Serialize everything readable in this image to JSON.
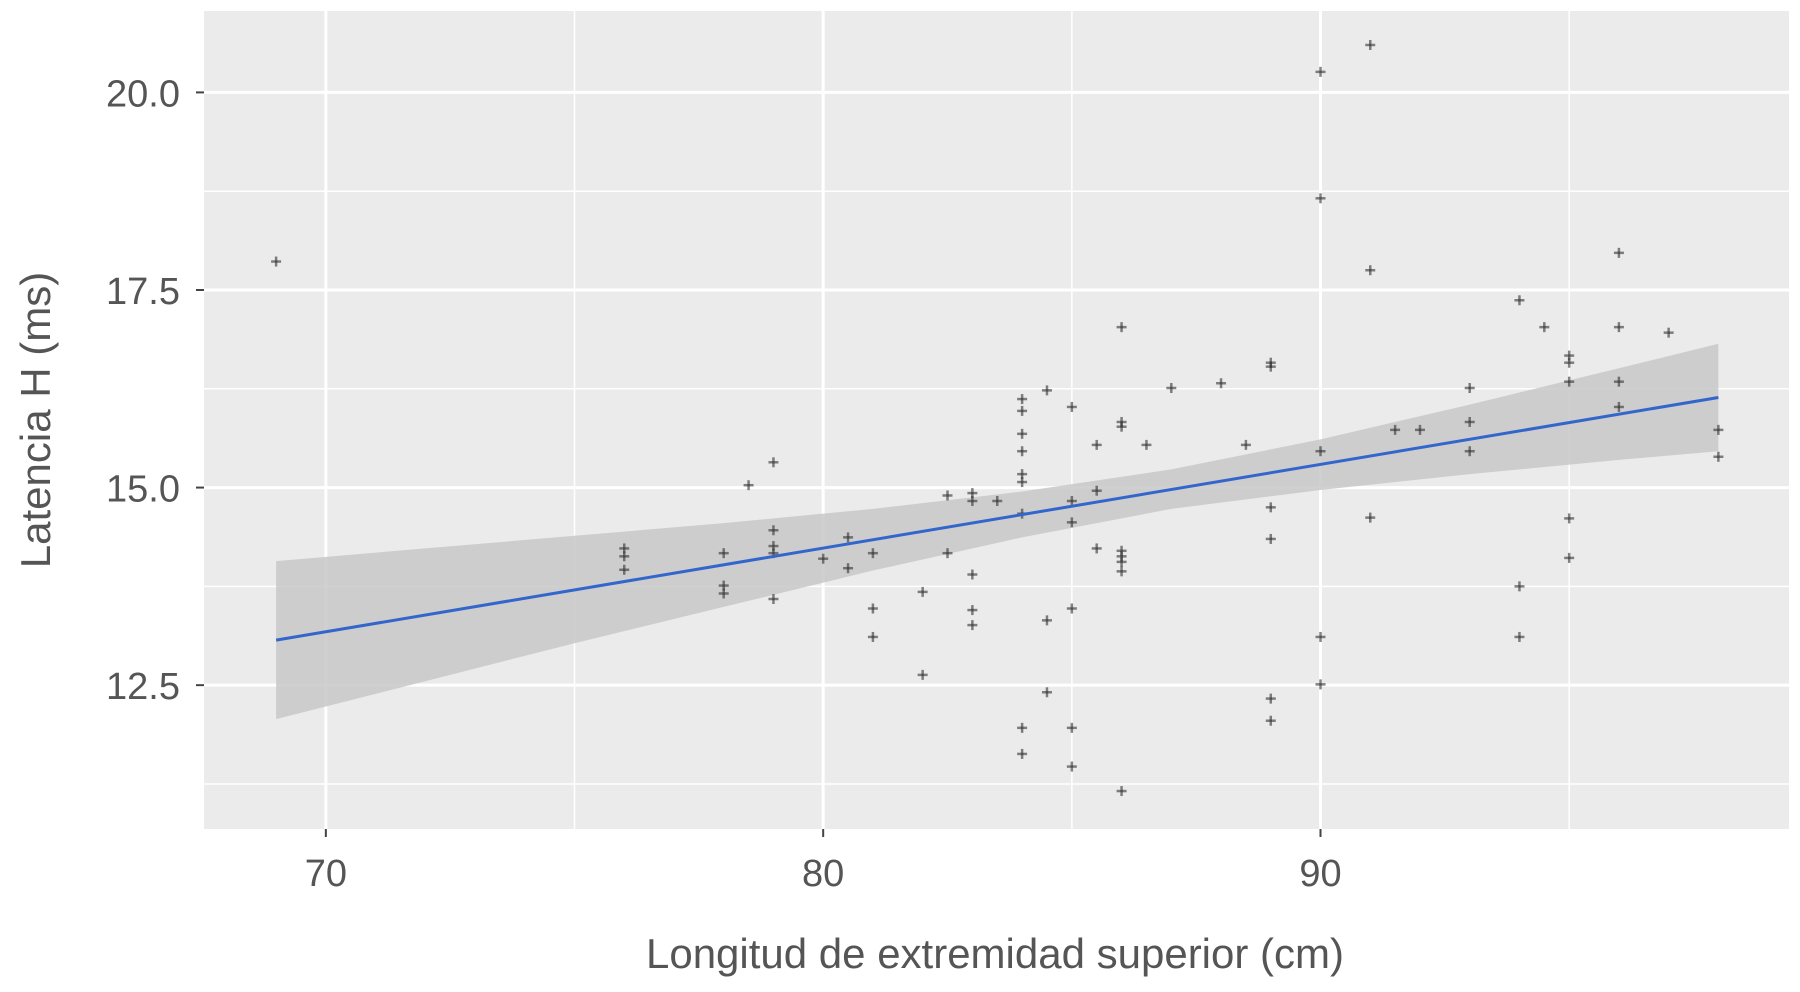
{
  "chart_data": {
    "type": "scatter",
    "title": "",
    "xlabel": "Longitud de extremidad superior (cm)",
    "ylabel": "Latencia H (ms)",
    "xlim": [
      67.55,
      99.42
    ],
    "ylim": [
      10.68,
      21.03
    ],
    "x_ticks": [
      70,
      80,
      90
    ],
    "x_tick_labels": [
      "70",
      "80",
      "90"
    ],
    "y_ticks": [
      12.5,
      15.0,
      17.5,
      20.0
    ],
    "y_tick_labels": [
      "12.5",
      "15.0",
      "17.5",
      "20.0"
    ],
    "grid": true,
    "colors": {
      "panel": "#ebebeb",
      "grid": "#ffffff",
      "points": "#333333",
      "fit": "#3366cc",
      "band": "#c8c8c8"
    },
    "points": [
      [
        69,
        17.86
      ],
      [
        76,
        14.23
      ],
      [
        76,
        14.13
      ],
      [
        76,
        13.96
      ],
      [
        78,
        14.17
      ],
      [
        78,
        13.76
      ],
      [
        78,
        13.66
      ],
      [
        78.5,
        15.03
      ],
      [
        79,
        15.32
      ],
      [
        79,
        14.46
      ],
      [
        79,
        14.26
      ],
      [
        79,
        14.17
      ],
      [
        79,
        13.59
      ],
      [
        80,
        14.1
      ],
      [
        80.5,
        14.37
      ],
      [
        80.5,
        13.98
      ],
      [
        81,
        14.17
      ],
      [
        81,
        13.47
      ],
      [
        81,
        13.11
      ],
      [
        82,
        13.68
      ],
      [
        82,
        12.63
      ],
      [
        82.5,
        14.9
      ],
      [
        82.5,
        14.17
      ],
      [
        83,
        14.93
      ],
      [
        83,
        14.83
      ],
      [
        83,
        13.9
      ],
      [
        83,
        13.45
      ],
      [
        83,
        13.26
      ],
      [
        83.5,
        14.83
      ],
      [
        84,
        16.12
      ],
      [
        84,
        15.97
      ],
      [
        84,
        15.68
      ],
      [
        84,
        15.46
      ],
      [
        84,
        15.17
      ],
      [
        84,
        15.07
      ],
      [
        84,
        14.67
      ],
      [
        84,
        11.96
      ],
      [
        84,
        11.63
      ],
      [
        84.5,
        16.23
      ],
      [
        84.5,
        13.32
      ],
      [
        84.5,
        12.41
      ],
      [
        85,
        16.02
      ],
      [
        85,
        14.83
      ],
      [
        85,
        14.56
      ],
      [
        85,
        13.47
      ],
      [
        85,
        11.96
      ],
      [
        85,
        11.47
      ],
      [
        85.5,
        15.54
      ],
      [
        85.5,
        14.96
      ],
      [
        85.5,
        14.23
      ],
      [
        86,
        17.03
      ],
      [
        86,
        15.83
      ],
      [
        86,
        15.77
      ],
      [
        86,
        14.2
      ],
      [
        86,
        14.13
      ],
      [
        86,
        14.06
      ],
      [
        86,
        13.94
      ],
      [
        86,
        11.16
      ],
      [
        86.5,
        15.54
      ],
      [
        87,
        16.26
      ],
      [
        88,
        16.32
      ],
      [
        88.5,
        15.54
      ],
      [
        89,
        16.58
      ],
      [
        89,
        16.53
      ],
      [
        89,
        14.75
      ],
      [
        89,
        14.35
      ],
      [
        89,
        12.33
      ],
      [
        89,
        12.05
      ],
      [
        90,
        20.26
      ],
      [
        90,
        18.66
      ],
      [
        90,
        15.46
      ],
      [
        90,
        13.11
      ],
      [
        90,
        12.51
      ],
      [
        91,
        20.6
      ],
      [
        91,
        17.75
      ],
      [
        91,
        14.62
      ],
      [
        91.5,
        15.73
      ],
      [
        92,
        15.73
      ],
      [
        93,
        16.26
      ],
      [
        93,
        15.83
      ],
      [
        93,
        15.46
      ],
      [
        94,
        17.37
      ],
      [
        94,
        13.75
      ],
      [
        94,
        13.11
      ],
      [
        94.5,
        17.03
      ],
      [
        95,
        16.67
      ],
      [
        95,
        16.58
      ],
      [
        95,
        16.34
      ],
      [
        95,
        14.61
      ],
      [
        95,
        14.11
      ],
      [
        96,
        17.97
      ],
      [
        96,
        17.03
      ],
      [
        96,
        16.34
      ],
      [
        96,
        16.02
      ],
      [
        97,
        16.96
      ],
      [
        98,
        15.73
      ],
      [
        98,
        15.39
      ]
    ],
    "fit": {
      "x": [
        69,
        98
      ],
      "y": [
        13.07,
        16.14
      ]
    },
    "confidence_band": {
      "x": [
        69,
        72,
        75,
        78,
        81,
        84,
        87,
        90,
        93,
        96,
        98
      ],
      "lower": [
        12.07,
        12.55,
        13.03,
        13.49,
        13.95,
        14.37,
        14.73,
        14.97,
        15.17,
        15.35,
        15.46
      ],
      "upper": [
        14.07,
        14.23,
        14.39,
        14.55,
        14.73,
        14.95,
        15.23,
        15.61,
        16.05,
        16.51,
        16.82
      ]
    }
  }
}
